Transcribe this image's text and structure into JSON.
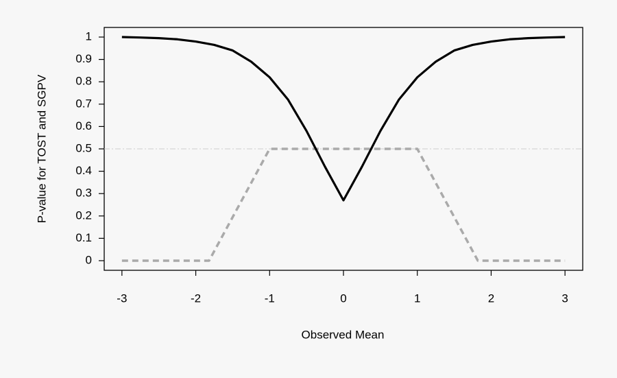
{
  "chart_data": {
    "type": "line",
    "xlabel": "Observed Mean",
    "ylabel": "P-value for TOST and SGPV",
    "series": [
      {
        "color": "#000000",
        "dash": "solid",
        "x": [
          -3,
          -2.75,
          -2.5,
          -2.25,
          -2,
          -1.75,
          -1.5,
          -1.25,
          -1,
          -0.75,
          -0.5,
          -0.25,
          0,
          0.25,
          0.5,
          0.75,
          1,
          1.25,
          1.5,
          1.75,
          2,
          2.25,
          2.5,
          2.75,
          3
        ],
        "values": [
          1.0,
          0.998,
          0.995,
          0.99,
          0.98,
          0.965,
          0.94,
          0.89,
          0.82,
          0.72,
          0.58,
          0.42,
          0.27,
          0.42,
          0.58,
          0.72,
          0.82,
          0.89,
          0.94,
          0.965,
          0.98,
          0.99,
          0.995,
          0.998,
          1.0
        ]
      },
      {
        "color": "#aaaaaa",
        "dash": "dashed",
        "x": [
          -3,
          -1.82,
          -1,
          1,
          1.82,
          3
        ],
        "values": [
          0,
          0,
          0.5,
          0.5,
          0,
          0
        ]
      }
    ],
    "hline": 0.5,
    "xlim": [
      -3.24,
      3.24
    ],
    "ylim": [
      -0.043,
      1.043
    ],
    "xticks": [
      -3,
      -2,
      -1,
      0,
      1,
      2,
      3
    ],
    "yticks": [
      0,
      0.1,
      0.2,
      0.3,
      0.4,
      0.5,
      0.6,
      0.7,
      0.8,
      0.9,
      1
    ]
  }
}
